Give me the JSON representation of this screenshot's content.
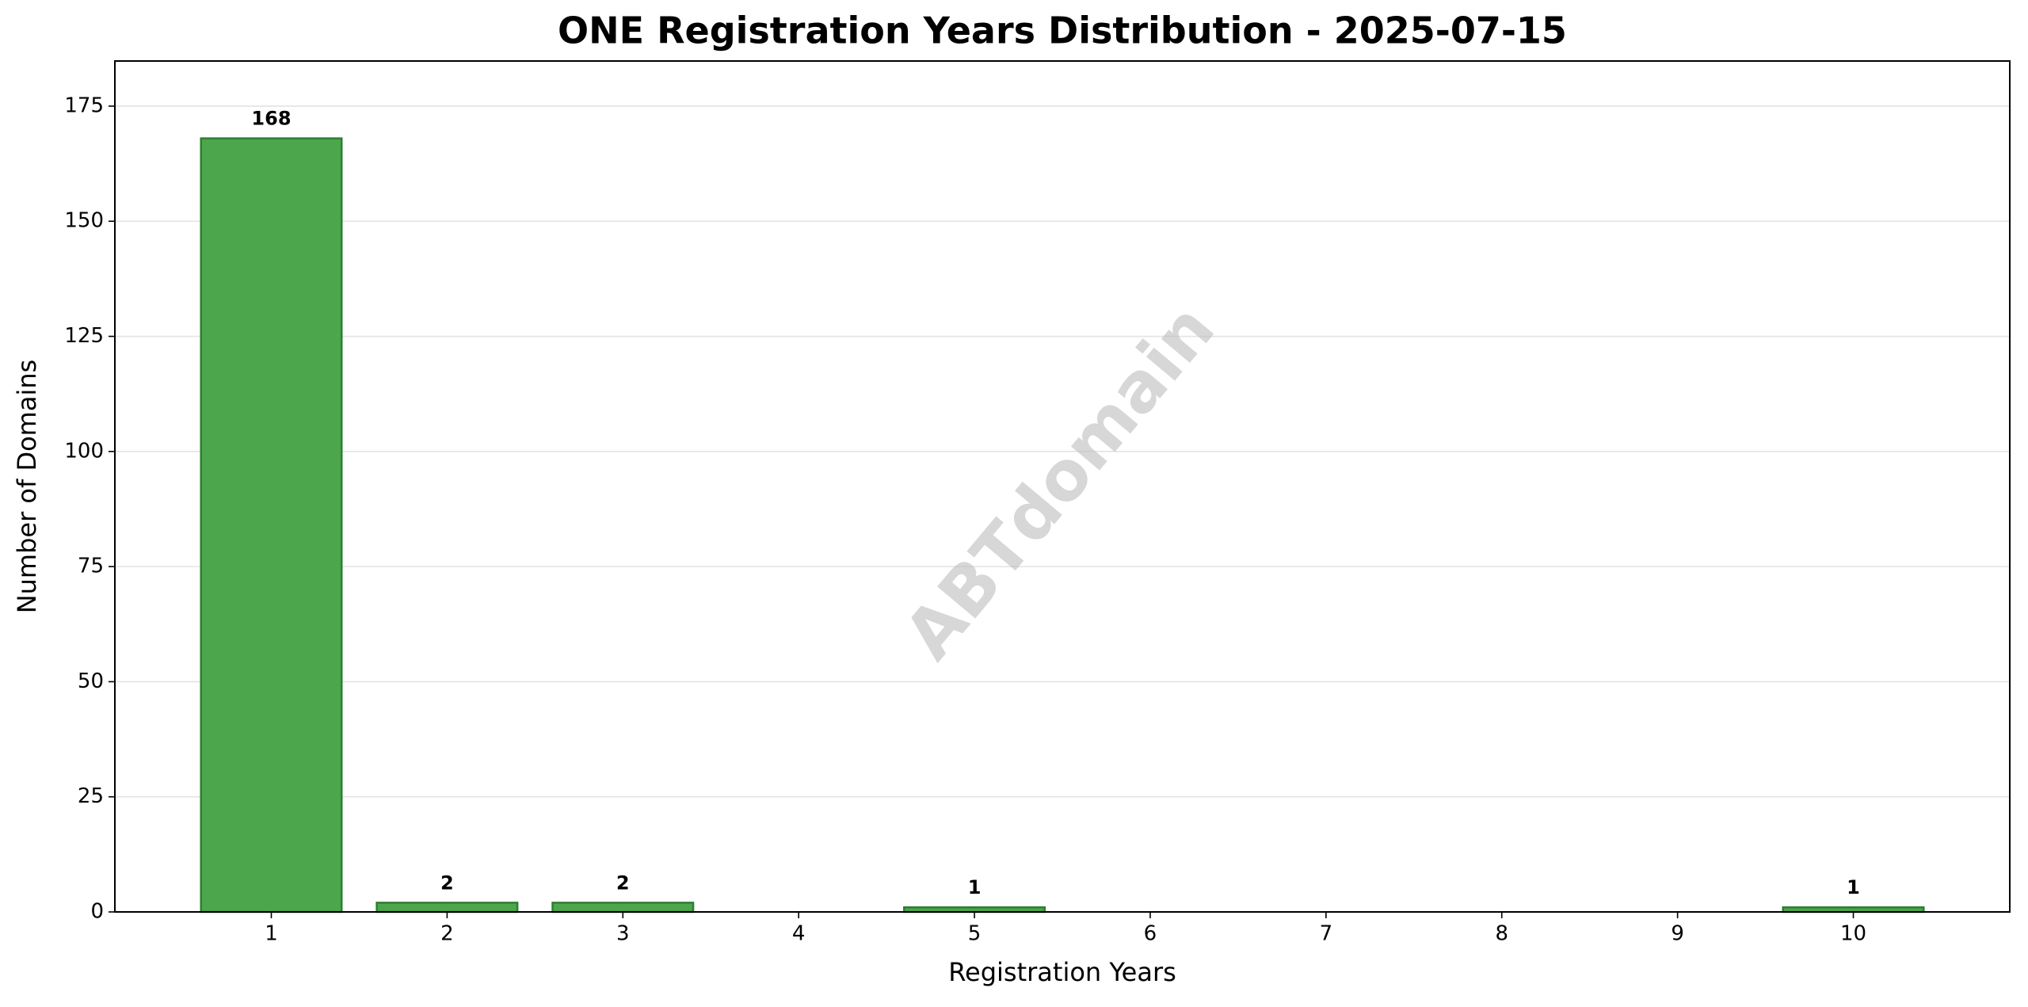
{
  "chart_data": {
    "type": "bar",
    "title": "ONE Registration Years Distribution - 2025-07-15",
    "xlabel": "Registration Years",
    "ylabel": "Number of Domains",
    "watermark": "ABTdomain",
    "x": [
      1,
      2,
      3,
      5,
      10
    ],
    "values": [
      168,
      2,
      2,
      1,
      1
    ],
    "color": "#4ca64c",
    "edgecolor": "#2e7d32",
    "xlim": [
      0.11,
      10.89
    ],
    "xticks": [
      1,
      2,
      3,
      4,
      5,
      6,
      7,
      8,
      9,
      10
    ],
    "ylim": [
      0,
      184.8
    ],
    "yticks": [
      0,
      25,
      50,
      75,
      100,
      125,
      150,
      175
    ],
    "grid": true
  }
}
